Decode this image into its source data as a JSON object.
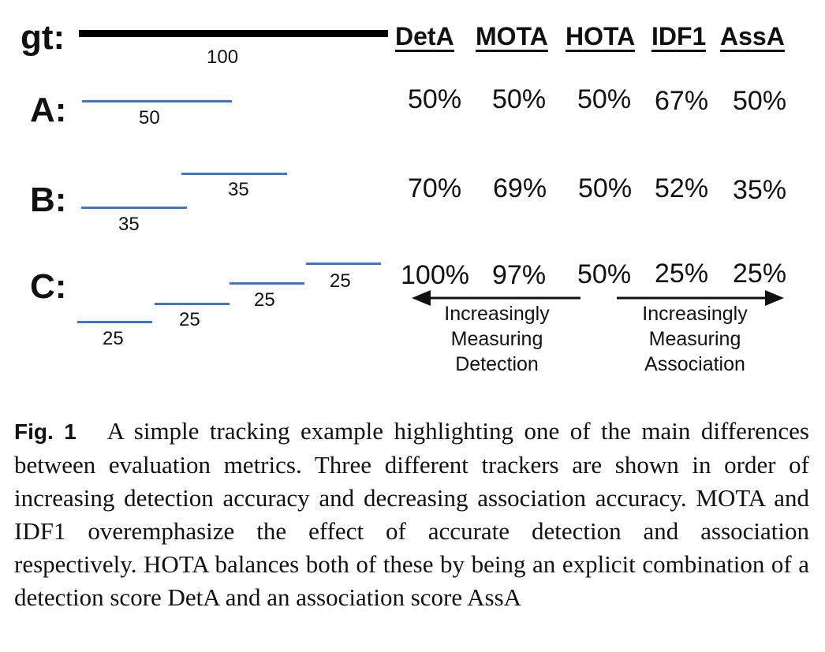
{
  "figure": {
    "gt_label": "gt:",
    "gt_length": "100",
    "headers": [
      "DetA",
      "MOTA",
      "HOTA",
      "IDF1",
      "AssA"
    ],
    "rows": [
      {
        "label": "A:",
        "segments": [
          "50"
        ],
        "values": [
          "50%",
          "50%",
          "50%",
          "67%",
          "50%"
        ]
      },
      {
        "label": "B:",
        "segments": [
          "35",
          "35"
        ],
        "values": [
          "70%",
          "69%",
          "50%",
          "52%",
          "35%"
        ]
      },
      {
        "label": "C:",
        "segments": [
          "25",
          "25",
          "25",
          "25"
        ],
        "values": [
          "100%",
          "97%",
          "50%",
          "25%",
          "25%"
        ]
      }
    ],
    "arrows": {
      "left": [
        "Increasingly",
        "Measuring",
        "Detection"
      ],
      "right": [
        "Increasingly",
        "Measuring",
        "Association"
      ]
    },
    "colors": {
      "track": "#4472c4",
      "ground_truth": "#000000"
    }
  },
  "caption": {
    "label": "Fig. 1",
    "text": "A simple tracking example highlighting one of the main differences between evaluation metrics. Three different trackers are shown in order of increasing detection accuracy and decreasing association accuracy. MOTA and IDF1 overemphasize the effect of accurate detection and association respectively. HOTA balances both of these by being an explicit combination of a detection score DetA and an association score AssA"
  }
}
